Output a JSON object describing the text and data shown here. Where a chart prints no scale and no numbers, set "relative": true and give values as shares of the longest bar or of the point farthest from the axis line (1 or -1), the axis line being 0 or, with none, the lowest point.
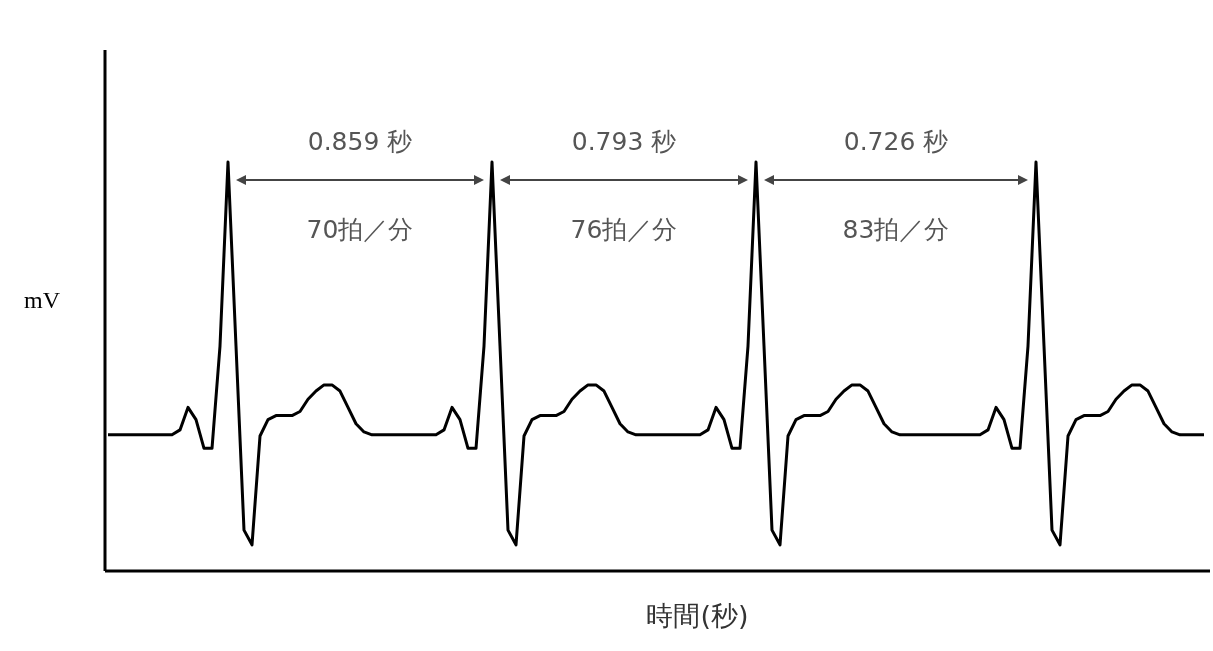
{
  "chart_data": {
    "type": "line",
    "xlabel": "時間(秒)",
    "ylabel": "mV",
    "relative": true,
    "categories": [
      null,
      null,
      null,
      null,
      null,
      null,
      null,
      null,
      null,
      null,
      null,
      null,
      null,
      null,
      null,
      null,
      null,
      null,
      null,
      null,
      null,
      null,
      null,
      null,
      null,
      null,
      null,
      null,
      null,
      null,
      null,
      null,
      null,
      null,
      null,
      null,
      null,
      null,
      null,
      null,
      null,
      null,
      null,
      null,
      null,
      null,
      null,
      null,
      null,
      null,
      null,
      null,
      null,
      null,
      null,
      null,
      null,
      null,
      null,
      null,
      null,
      null,
      null,
      null,
      null,
      null,
      null,
      null,
      null,
      null,
      null,
      null,
      null,
      null,
      null,
      null,
      null,
      null,
      null,
      null,
      null,
      null,
      null,
      null,
      null,
      null,
      null,
      null,
      null,
      null,
      null,
      null,
      null,
      null,
      null,
      null,
      null,
      null,
      null,
      null,
      null,
      null,
      null,
      null,
      null,
      null,
      null,
      null,
      null,
      null,
      null,
      null,
      null,
      null,
      null,
      null,
      null,
      null,
      null,
      null,
      null,
      null,
      null,
      null,
      null,
      null,
      null,
      null,
      null,
      null,
      null,
      null,
      null,
      null,
      null,
      null,
      null,
      null
    ],
    "series": [
      {
        "color": "#000000",
        "values": [
          0.333,
          0.333,
          0.333,
          0.333,
          0.333,
          0.333,
          0.333,
          0.333,
          0.333,
          0.345,
          0.4,
          0.37,
          0.3,
          0.3,
          0.55,
          1.0,
          0.55,
          0.1,
          0.064,
          0.33,
          0.37,
          0.38,
          0.38,
          0.38,
          0.39,
          0.42,
          0.44,
          0.455,
          0.455,
          0.44,
          0.4,
          0.36,
          0.34,
          0.333,
          0.333,
          0.333,
          0.333,
          0.333,
          0.333,
          0.333,
          0.333,
          0.333,
          0.345,
          0.4,
          0.37,
          0.3,
          0.3,
          0.55,
          1.0,
          0.55,
          0.1,
          0.064,
          0.33,
          0.37,
          0.38,
          0.38,
          0.38,
          0.39,
          0.42,
          0.44,
          0.455,
          0.455,
          0.44,
          0.4,
          0.36,
          0.34,
          0.333,
          0.333,
          0.333,
          0.333,
          0.333,
          0.333,
          0.333,
          0.333,
          0.333,
          0.345,
          0.4,
          0.37,
          0.3,
          0.3,
          0.55,
          1.0,
          0.55,
          0.1,
          0.064,
          0.33,
          0.37,
          0.38,
          0.38,
          0.38,
          0.39,
          0.42,
          0.44,
          0.455,
          0.455,
          0.44,
          0.4,
          0.36,
          0.34,
          0.333,
          0.333,
          0.333,
          0.333,
          0.333,
          0.333,
          0.333,
          0.333,
          0.333,
          0.333,
          0.333,
          0.345,
          0.4,
          0.37,
          0.3,
          0.3,
          0.55,
          1.0,
          0.55,
          0.1,
          0.064,
          0.33,
          0.37,
          0.38,
          0.38,
          0.38,
          0.39,
          0.42,
          0.44,
          0.455,
          0.455,
          0.44,
          0.4,
          0.36,
          0.34,
          0.333,
          0.333,
          0.333,
          0.333
        ]
      }
    ],
    "annotations": [
      "0.859 秒",
      "70拍／分",
      "0.793 秒",
      "76拍／分",
      "0.726 秒",
      "83拍／分"
    ]
  }
}
